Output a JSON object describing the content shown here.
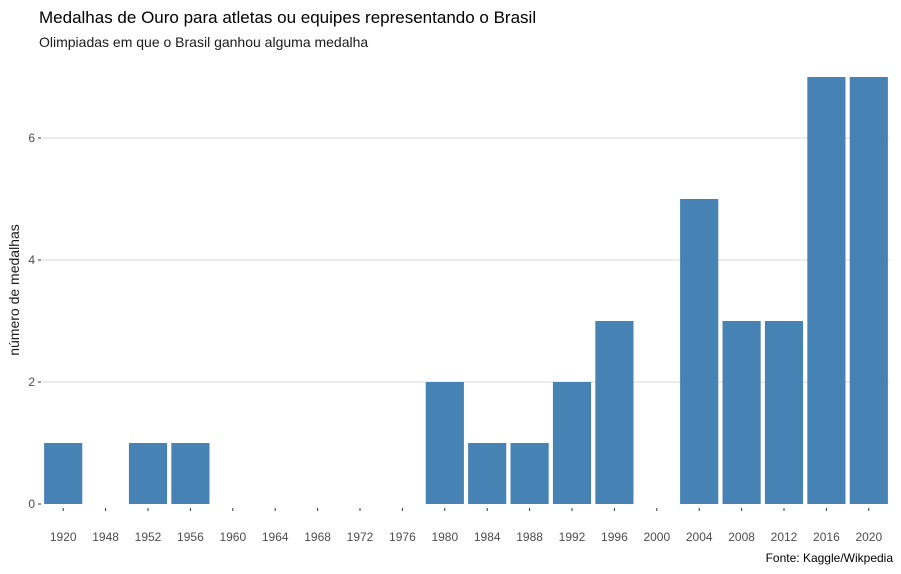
{
  "chart_data": {
    "type": "bar",
    "title": "Medalhas de Ouro para atletas ou equipes representando o Brasil",
    "subtitle": "Olimpiadas em que o Brasil ganhou alguma medalha",
    "caption": "Fonte: Kaggle/Wikpedia",
    "xlabel": "",
    "ylabel": "número de medalhas",
    "categories": [
      "1920",
      "1948",
      "1952",
      "1956",
      "1960",
      "1964",
      "1968",
      "1972",
      "1976",
      "1980",
      "1984",
      "1988",
      "1992",
      "1996",
      "2000",
      "2004",
      "2008",
      "2012",
      "2016",
      "2020"
    ],
    "values": [
      1,
      0,
      1,
      1,
      0,
      0,
      0,
      0,
      0,
      2,
      1,
      1,
      2,
      3,
      0,
      5,
      3,
      3,
      7,
      7
    ],
    "ylim": [
      0,
      7
    ],
    "yticks": [
      "0",
      "2",
      "4",
      "6"
    ],
    "grid": true,
    "bar_color": "#4682B4"
  }
}
